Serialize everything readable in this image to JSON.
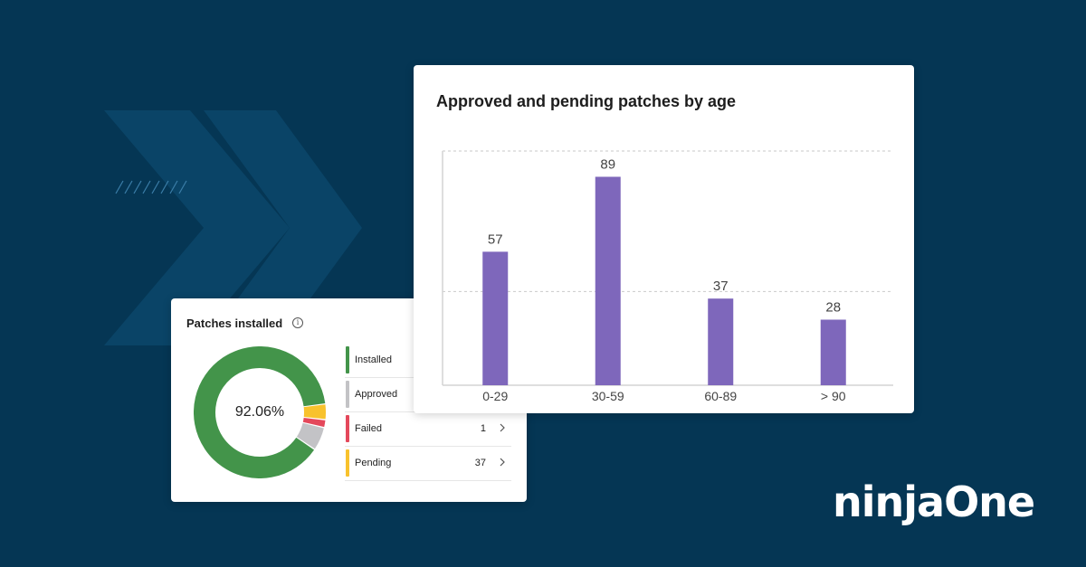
{
  "colors": {
    "background": "#053654",
    "chevron": "#0a4467",
    "bar": "#7e67bb",
    "installed": "#43944a",
    "approved": "#c3c3c6",
    "failed": "#e4485b",
    "pending": "#f8c22d"
  },
  "patches_card": {
    "title": "Patches installed",
    "info_icon": "info-icon",
    "center_value": "92.06%",
    "legend": [
      {
        "label": "Installed",
        "count": "",
        "fraction": 0.9206
      },
      {
        "label": "Approved",
        "count": "",
        "fraction": 0.06
      },
      {
        "label": "Failed",
        "count": "1",
        "fraction": 0.02
      },
      {
        "label": "Pending",
        "count": "37",
        "fraction": 0.04
      }
    ]
  },
  "chart_data": {
    "type": "bar",
    "title": "Approved and pending patches by age",
    "categories": [
      "0-29",
      "30-59",
      "60-89",
      "> 90"
    ],
    "values": [
      57,
      89,
      37,
      28
    ],
    "data_labels": [
      "57",
      "89",
      "37",
      "28"
    ],
    "xlabel": "",
    "ylabel": "",
    "ylim": [
      0,
      100
    ],
    "gridlines": [
      40,
      100
    ],
    "grid": true,
    "legend": "none"
  },
  "logo": {
    "text": "ninjaOne"
  }
}
